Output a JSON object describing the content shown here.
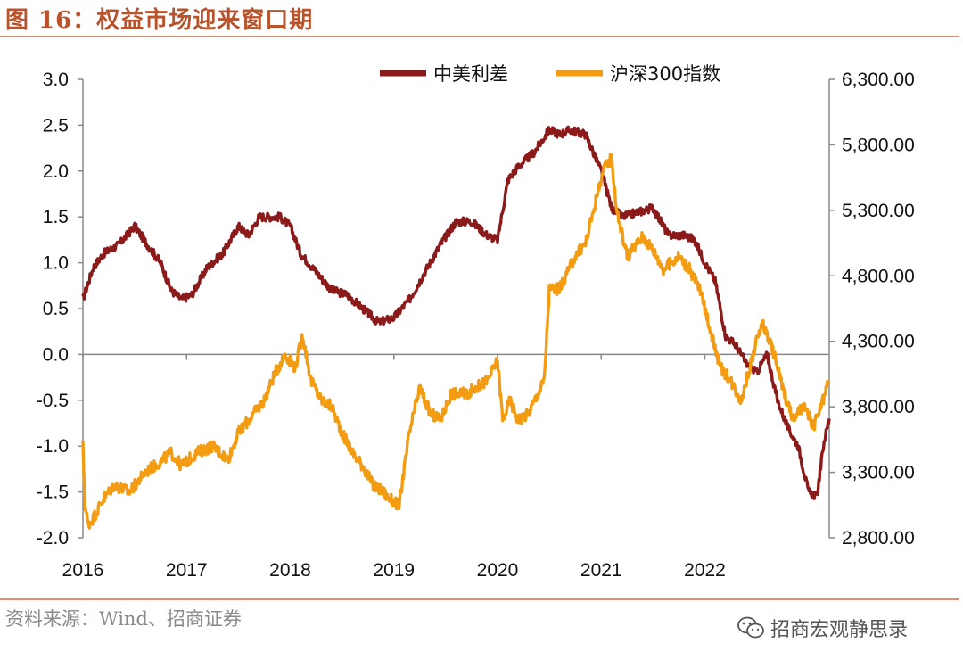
{
  "figure_title": "图 16：权益市场迎来窗口期",
  "source_note": "资料来源：Wind、招商证券",
  "watermark": "招商宏观静思录",
  "chart_data": {
    "type": "line",
    "title": "",
    "xlabel": "",
    "ylabel": "",
    "x_ticks": [
      "2016",
      "2017",
      "2018",
      "2019",
      "2020",
      "2021",
      "2022"
    ],
    "y_left": {
      "ylim": [
        -2.0,
        3.0
      ],
      "ticks": [
        "3.0",
        "2.5",
        "2.0",
        "1.5",
        "1.0",
        "0.5",
        "0.0",
        "-0.5",
        "-1.0",
        "-1.5",
        "-2.0"
      ]
    },
    "y_right": {
      "ylim": [
        2800,
        6300
      ],
      "ticks": [
        "6,300.00",
        "5,800.00",
        "5,300.00",
        "4,800.00",
        "4,300.00",
        "3,800.00",
        "3,300.00",
        "2,800.00"
      ]
    },
    "legend_position": "top-right",
    "grid": false,
    "series": [
      {
        "name": "中美利差",
        "axis": "left",
        "color": "#8b1a1a",
        "x": [
          2016.0,
          2016.1,
          2016.2,
          2016.35,
          2016.5,
          2016.62,
          2016.75,
          2016.85,
          2016.95,
          2017.05,
          2017.2,
          2017.35,
          2017.5,
          2017.6,
          2017.7,
          2017.8,
          2017.9,
          2018.0,
          2018.1,
          2018.25,
          2018.4,
          2018.55,
          2018.7,
          2018.85,
          2019.0,
          2019.15,
          2019.3,
          2019.45,
          2019.6,
          2019.75,
          2019.9,
          2020.0,
          2020.1,
          2020.2,
          2020.35,
          2020.5,
          2020.6,
          2020.7,
          2020.85,
          2021.0,
          2021.1,
          2021.2,
          2021.35,
          2021.5,
          2021.65,
          2021.8,
          2021.9,
          2022.0,
          2022.1,
          2022.2,
          2022.3,
          2022.4,
          2022.5,
          2022.6,
          2022.7,
          2022.8,
          2022.9,
          2023.0,
          2023.08,
          2023.15,
          2023.2
        ],
        "values": [
          0.6,
          0.95,
          1.1,
          1.2,
          1.4,
          1.2,
          1.0,
          0.7,
          0.6,
          0.65,
          0.95,
          1.1,
          1.4,
          1.3,
          1.5,
          1.5,
          1.5,
          1.4,
          1.1,
          0.9,
          0.7,
          0.65,
          0.5,
          0.35,
          0.4,
          0.6,
          0.9,
          1.2,
          1.45,
          1.45,
          1.3,
          1.25,
          1.9,
          2.05,
          2.2,
          2.45,
          2.4,
          2.45,
          2.4,
          2.0,
          1.6,
          1.5,
          1.55,
          1.6,
          1.3,
          1.3,
          1.25,
          1.0,
          0.8,
          0.2,
          0.1,
          -0.1,
          -0.2,
          0.0,
          -0.5,
          -0.8,
          -1.0,
          -1.5,
          -1.55,
          -0.95,
          -0.7
        ]
      },
      {
        "name": "沪深300指数",
        "axis": "right",
        "color": "#f39c12",
        "x": [
          2016.0,
          2016.02,
          2016.05,
          2016.1,
          2016.2,
          2016.3,
          2016.45,
          2016.6,
          2016.75,
          2016.85,
          2016.95,
          2017.1,
          2017.25,
          2017.4,
          2017.5,
          2017.6,
          2017.75,
          2017.85,
          2017.95,
          2018.05,
          2018.12,
          2018.2,
          2018.3,
          2018.4,
          2018.5,
          2018.6,
          2018.7,
          2018.8,
          2018.9,
          2018.95,
          2019.05,
          2019.15,
          2019.25,
          2019.35,
          2019.45,
          2019.55,
          2019.7,
          2019.8,
          2019.9,
          2020.0,
          2020.05,
          2020.12,
          2020.2,
          2020.3,
          2020.45,
          2020.5,
          2020.6,
          2020.75,
          2020.85,
          2021.0,
          2021.05,
          2021.1,
          2021.15,
          2021.25,
          2021.4,
          2021.5,
          2021.6,
          2021.75,
          2021.85,
          2021.95,
          2022.05,
          2022.15,
          2022.25,
          2022.35,
          2022.45,
          2022.55,
          2022.65,
          2022.75,
          2022.85,
          2022.95,
          2023.05,
          2023.12,
          2023.2
        ],
        "values": [
          3500,
          3050,
          2900,
          2950,
          3100,
          3200,
          3150,
          3300,
          3380,
          3450,
          3350,
          3450,
          3500,
          3400,
          3600,
          3700,
          3850,
          4050,
          4200,
          4100,
          4350,
          4000,
          3850,
          3800,
          3600,
          3450,
          3350,
          3200,
          3150,
          3100,
          3050,
          3600,
          3950,
          3750,
          3700,
          3900,
          3900,
          3950,
          4000,
          4150,
          3700,
          3850,
          3700,
          3750,
          4000,
          4700,
          4700,
          4950,
          5050,
          5550,
          5650,
          5700,
          5300,
          4950,
          5100,
          5000,
          4850,
          4950,
          4850,
          4700,
          4400,
          4100,
          4000,
          3850,
          4150,
          4450,
          4250,
          3950,
          3700,
          3800,
          3650,
          3800,
          4000
        ]
      }
    ]
  }
}
